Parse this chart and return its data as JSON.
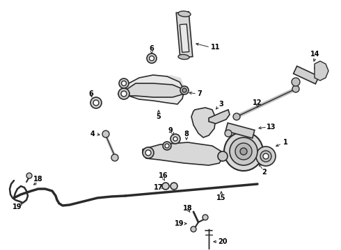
{
  "background_color": "#ffffff",
  "line_color": "#2a2a2a",
  "text_color": "#000000",
  "fig_width": 4.9,
  "fig_height": 3.6,
  "dpi": 100
}
